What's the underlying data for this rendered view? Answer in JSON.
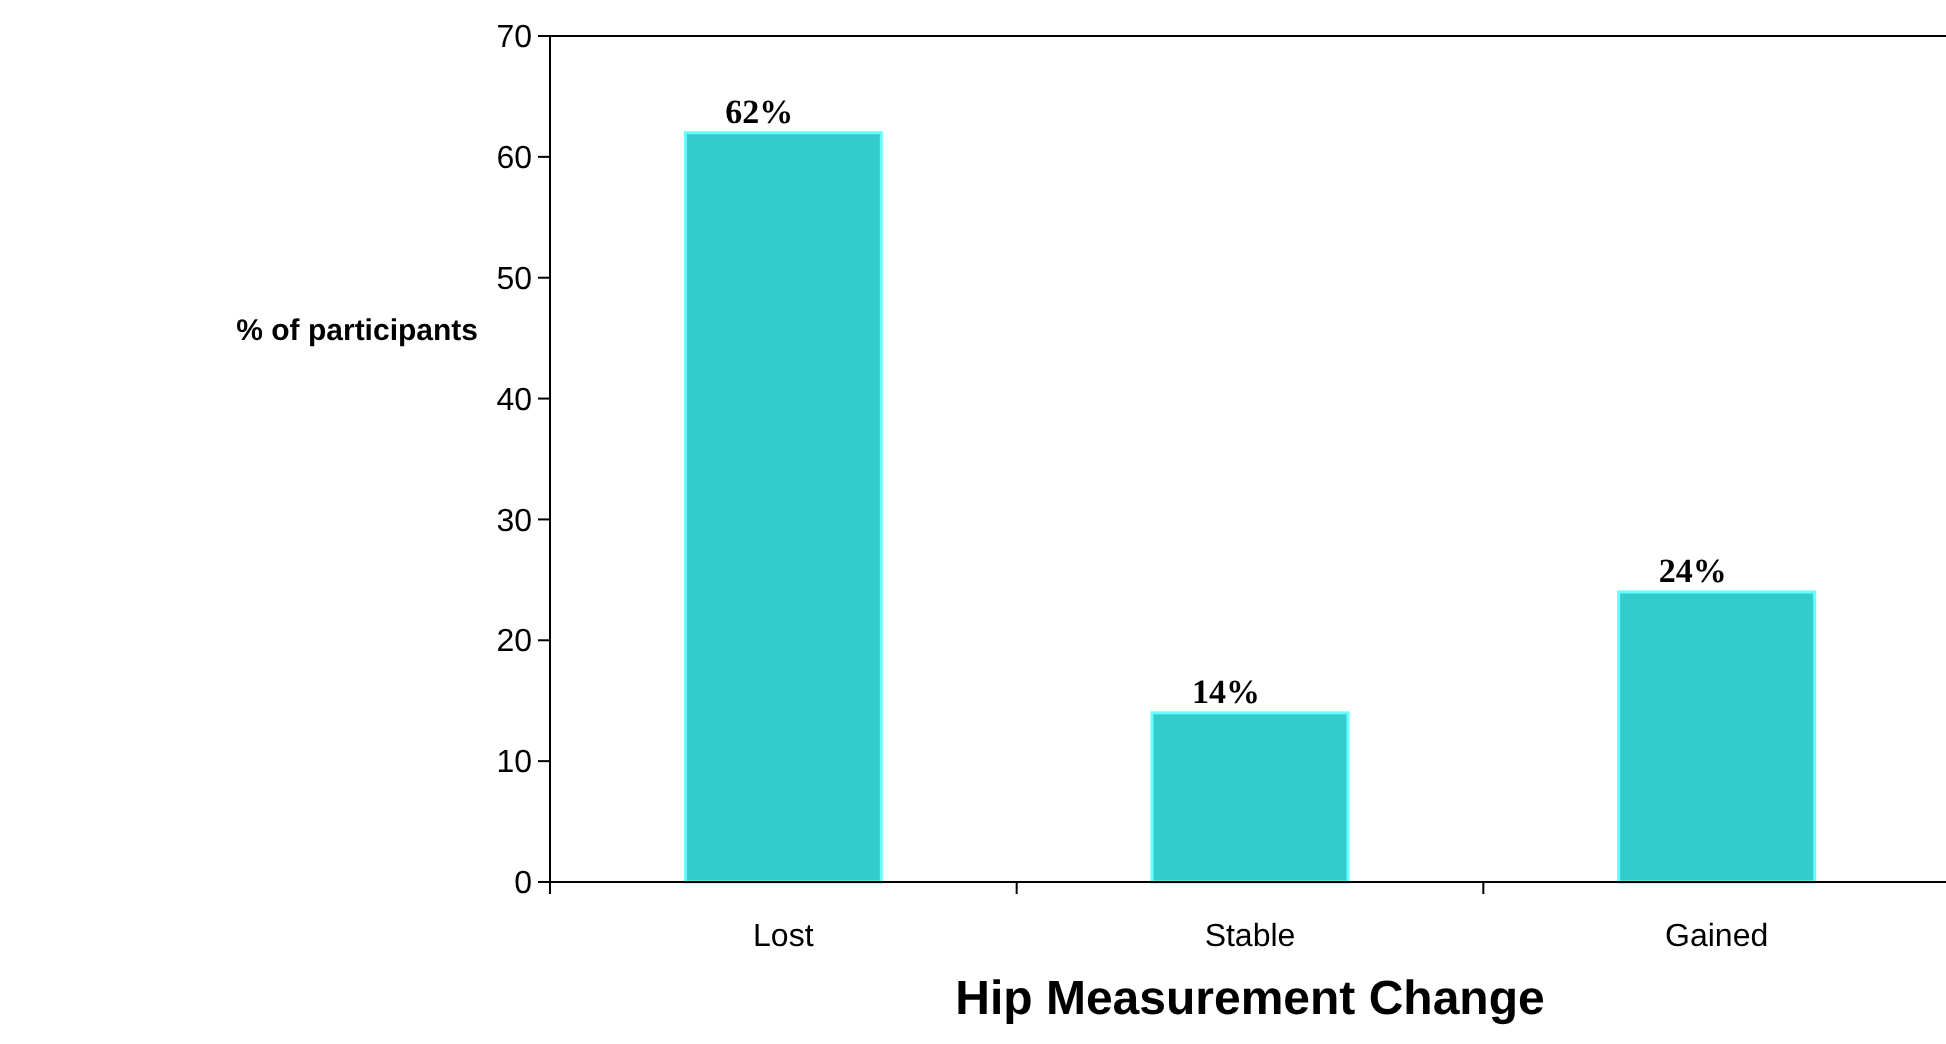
{
  "chart_data": {
    "type": "bar",
    "xlabel": "Hip Measurement Change",
    "ylabel": "% of participants",
    "categories": [
      "Lost",
      "Stable",
      "Gained"
    ],
    "values": [
      62,
      14,
      24
    ],
    "value_labels": [
      "62%",
      "14%",
      "24%"
    ],
    "color": "#33cccc",
    "ylim": [
      0,
      70
    ],
    "yticks": [
      0,
      10,
      20,
      30,
      40,
      50,
      60,
      70
    ],
    "grid": false
  }
}
